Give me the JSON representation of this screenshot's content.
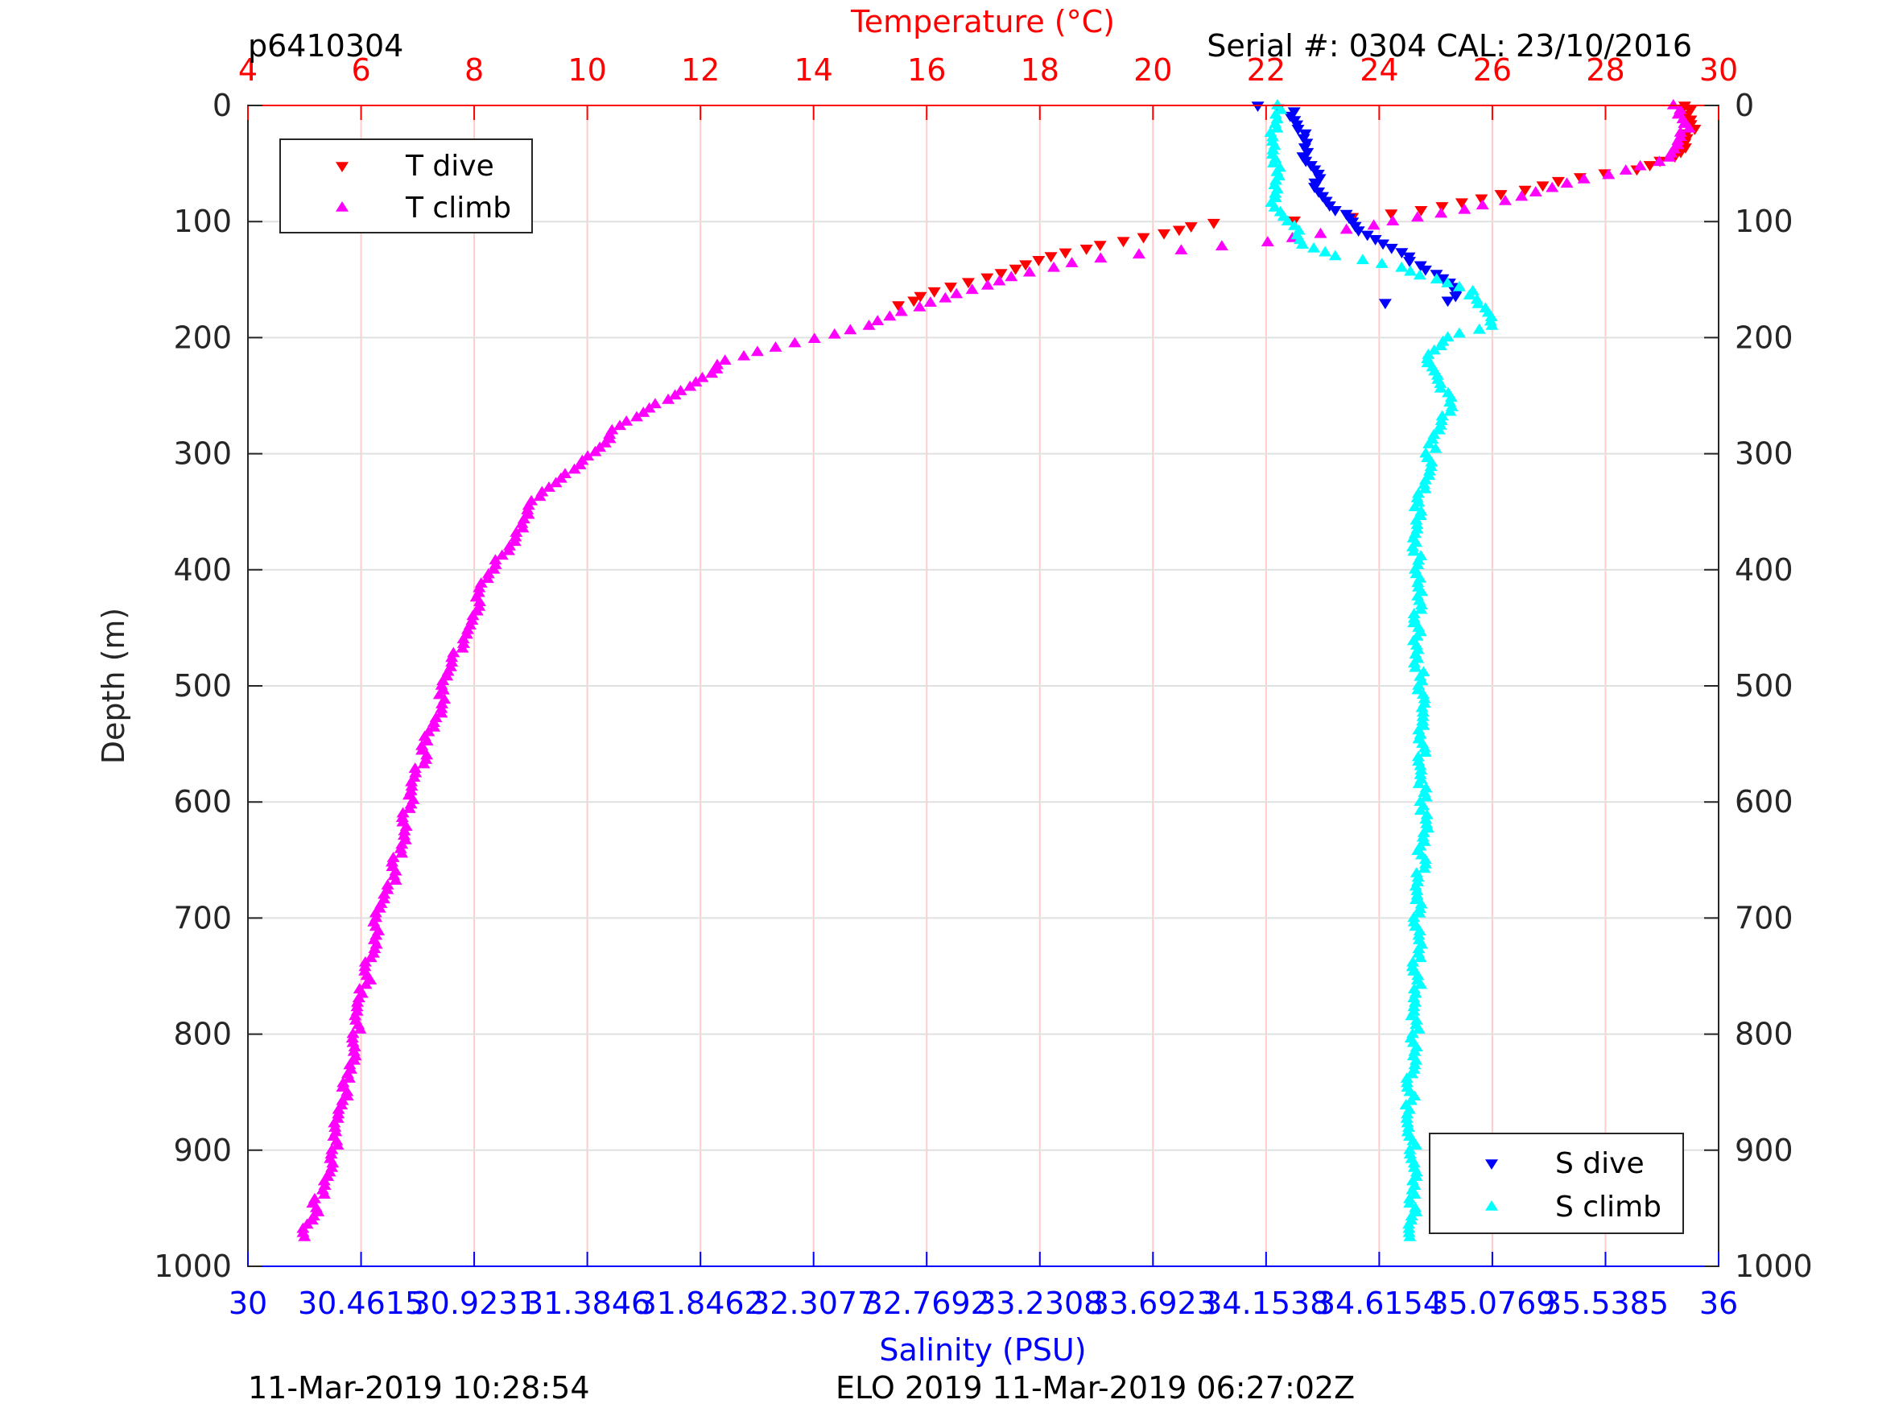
{
  "header": {
    "profile_id": "p6410304",
    "serial_cal": "Serial #: 0304  CAL: 23/10/2016"
  },
  "footer": {
    "left_timestamp": "11-Mar-2019 10:28:54",
    "mission_info": "ELO 2019 11-Mar-2019 06:27:02Z"
  },
  "colors": {
    "t_dive": "#ff0000",
    "t_climb": "#ff00ff",
    "s_dive": "#0000ff",
    "s_climb": "#00ffff",
    "temp_axis": "#ff0000",
    "sal_axis": "#0000ff",
    "grid": "#ffcccc",
    "hgrid": "#e0e0e0"
  },
  "chart_data": {
    "type": "scatter",
    "temp_axis": {
      "label": "Temperature (°C)",
      "lim": [
        4,
        30
      ],
      "ticks": [
        4,
        6,
        8,
        10,
        12,
        14,
        16,
        18,
        20,
        22,
        24,
        26,
        28,
        30
      ],
      "tick_labels": [
        "4",
        "6",
        "8",
        "10",
        "12",
        "14",
        "16",
        "18",
        "20",
        "22",
        "24",
        "26",
        "28",
        "30"
      ]
    },
    "sal_axis": {
      "label": "Salinity (PSU)",
      "lim": [
        30,
        36
      ],
      "ticks": [
        30,
        30.4615,
        30.9231,
        31.3846,
        31.8462,
        32.3077,
        32.7692,
        33.2308,
        33.6923,
        34.1538,
        34.6154,
        35.0769,
        35.5385,
        36
      ],
      "tick_labels": [
        "30",
        "30.4615",
        "30.9231",
        "31.3846",
        "31.8462",
        "32.3077",
        "32.7692",
        "33.2308",
        "33.6923",
        "34.1538",
        "34.6154",
        "35.0769",
        "35.5385",
        "36"
      ]
    },
    "depth_axis": {
      "label": "Depth (m)",
      "lim": [
        0,
        1000
      ],
      "ticks": [
        0,
        100,
        200,
        300,
        400,
        500,
        600,
        700,
        800,
        900,
        1000
      ],
      "tick_labels": [
        "0",
        "100",
        "200",
        "300",
        "400",
        "500",
        "600",
        "700",
        "800",
        "900",
        "1000"
      ]
    },
    "legend_temp": {
      "position": "top-left",
      "entries": [
        "T dive",
        "T climb"
      ]
    },
    "legend_sal": {
      "position": "bottom-right",
      "entries": [
        "S dive",
        "S climb"
      ]
    },
    "series": [
      {
        "name": "T dive",
        "axis": "temperature",
        "marker": "triangle-down",
        "points": [
          [
            29.4,
            0
          ],
          [
            29.5,
            20
          ],
          [
            29.4,
            40
          ],
          [
            28.5,
            55
          ],
          [
            27.2,
            65
          ],
          [
            25.8,
            80
          ],
          [
            24.8,
            90
          ],
          [
            23.5,
            96
          ],
          [
            22.5,
            99
          ],
          [
            21.0,
            101
          ],
          [
            20.2,
            110
          ],
          [
            19.0,
            120
          ],
          [
            18.0,
            133
          ],
          [
            17.0,
            148
          ],
          [
            16.2,
            160
          ],
          [
            15.5,
            172
          ]
        ]
      },
      {
        "name": "T climb",
        "axis": "temperature",
        "marker": "triangle-up",
        "points": [
          [
            29.2,
            0
          ],
          [
            29.4,
            20
          ],
          [
            29.2,
            45
          ],
          [
            28.0,
            60
          ],
          [
            26.8,
            75
          ],
          [
            25.5,
            90
          ],
          [
            24.3,
            100
          ],
          [
            22.0,
            118
          ],
          [
            20.5,
            125
          ],
          [
            19.0,
            132
          ],
          [
            17.5,
            148
          ],
          [
            16.0,
            170
          ],
          [
            15.0,
            190
          ],
          [
            13.6,
            205
          ],
          [
            12.5,
            220
          ],
          [
            11.5,
            250
          ],
          [
            10.5,
            280
          ],
          [
            9.8,
            310
          ],
          [
            9.0,
            345
          ],
          [
            8.6,
            380
          ],
          [
            8.1,
            420
          ],
          [
            7.8,
            460
          ],
          [
            7.5,
            500
          ],
          [
            7.1,
            560
          ],
          [
            6.8,
            610
          ],
          [
            6.6,
            660
          ],
          [
            6.3,
            700
          ],
          [
            6.1,
            750
          ],
          [
            5.9,
            800
          ],
          [
            5.7,
            850
          ],
          [
            5.5,
            900
          ],
          [
            5.2,
            950
          ],
          [
            5.0,
            975
          ]
        ]
      },
      {
        "name": "S dive",
        "axis": "salinity",
        "marker": "triangle-down",
        "points": [
          [
            34.12,
            0
          ],
          [
            34.25,
            5
          ],
          [
            34.3,
            20
          ],
          [
            34.31,
            40
          ],
          [
            34.36,
            55
          ],
          [
            34.35,
            70
          ],
          [
            34.45,
            90
          ],
          [
            34.5,
            100
          ],
          [
            34.6,
            115
          ],
          [
            34.72,
            130
          ],
          [
            34.85,
            145
          ],
          [
            34.92,
            160
          ],
          [
            34.9,
            168
          ],
          [
            34.64,
            170
          ]
        ]
      },
      {
        "name": "S climb",
        "axis": "salinity",
        "marker": "triangle-up",
        "points": [
          [
            34.2,
            0
          ],
          [
            34.18,
            20
          ],
          [
            34.2,
            50
          ],
          [
            34.18,
            80
          ],
          [
            34.25,
            100
          ],
          [
            34.3,
            120
          ],
          [
            34.45,
            130
          ],
          [
            34.7,
            140
          ],
          [
            34.85,
            150
          ],
          [
            34.98,
            160
          ],
          [
            35.05,
            175
          ],
          [
            35.06,
            190
          ],
          [
            34.9,
            200
          ],
          [
            34.8,
            215
          ],
          [
            34.88,
            240
          ],
          [
            34.9,
            260
          ],
          [
            34.82,
            300
          ],
          [
            34.77,
            350
          ],
          [
            34.77,
            400
          ],
          [
            34.77,
            450
          ],
          [
            34.78,
            500
          ],
          [
            34.79,
            550
          ],
          [
            34.8,
            600
          ],
          [
            34.79,
            650
          ],
          [
            34.77,
            700
          ],
          [
            34.77,
            750
          ],
          [
            34.76,
            800
          ],
          [
            34.74,
            850
          ],
          [
            34.75,
            900
          ],
          [
            34.75,
            950
          ],
          [
            34.74,
            975
          ]
        ]
      }
    ]
  }
}
